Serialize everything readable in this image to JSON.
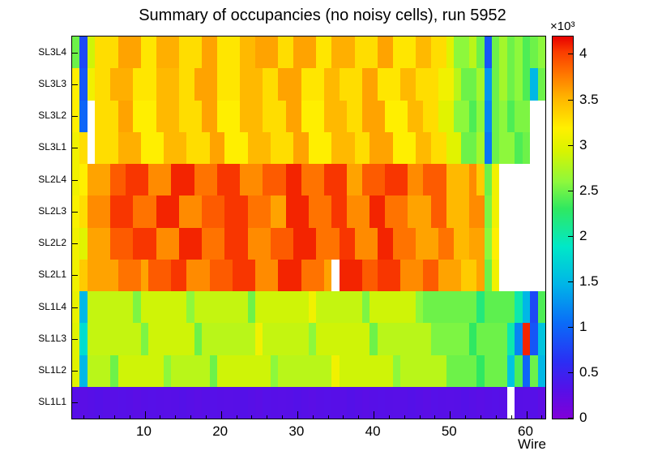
{
  "title": "Summary of occupancies (no noisy cells), run 5952",
  "chart_data": {
    "type": "heatmap",
    "title": "Summary of occupancies (no noisy cells), run 5952",
    "xlabel": "Wire",
    "n_wires": 62,
    "x_ticks": [
      10,
      20,
      30,
      40,
      50,
      60
    ],
    "x_minor_tick_step": 2,
    "z_max": 4200,
    "z_ticks": [
      0,
      0.5,
      1,
      1.5,
      2,
      2.5,
      3,
      3.5,
      4
    ],
    "z_scale_label": "×10³",
    "legend_position": "right",
    "grid": false,
    "palette": [
      {
        "f": 0.0,
        "color": "#8000d8"
      },
      {
        "f": 0.075,
        "color": "#5510e8"
      },
      {
        "f": 0.15,
        "color": "#2a2ff4"
      },
      {
        "f": 0.25,
        "color": "#0a6cf8"
      },
      {
        "f": 0.35,
        "color": "#00b4e8"
      },
      {
        "f": 0.45,
        "color": "#00e8c8"
      },
      {
        "f": 0.55,
        "color": "#30e860"
      },
      {
        "f": 0.62,
        "color": "#8ef83c"
      },
      {
        "f": 0.7,
        "color": "#d8f400"
      },
      {
        "f": 0.76,
        "color": "#fff000"
      },
      {
        "f": 0.84,
        "color": "#ffb400"
      },
      {
        "f": 0.9,
        "color": "#ff7800"
      },
      {
        "f": 0.96,
        "color": "#fa3c00"
      },
      {
        "f": 1.0,
        "color": "#e80000"
      }
    ],
    "rows": [
      {
        "label": "SL1L1",
        "values": [
          300,
          280,
          300,
          320,
          300,
          290,
          310,
          300,
          280,
          300,
          310,
          300,
          290,
          300,
          320,
          300,
          280,
          300,
          310,
          300,
          290,
          300,
          320,
          300,
          280,
          310,
          300,
          290,
          300,
          320,
          300,
          280,
          300,
          310,
          300,
          290,
          320,
          300,
          280,
          300,
          310,
          300,
          290,
          300,
          320,
          300,
          280,
          310,
          300,
          290,
          300,
          320,
          300,
          280,
          300,
          310,
          300,
          null,
          300,
          290,
          310,
          260
        ]
      },
      {
        "label": "SL1L2",
        "values": [
          3000,
          1500,
          2800,
          2800,
          2800,
          2500,
          2900,
          2900,
          2900,
          2900,
          2900,
          2900,
          2600,
          2800,
          2800,
          2800,
          2800,
          2800,
          2500,
          2900,
          2900,
          2900,
          2900,
          2900,
          2900,
          2900,
          2600,
          2800,
          2800,
          2800,
          2800,
          2800,
          2800,
          2800,
          3100,
          2900,
          2900,
          2900,
          2900,
          2900,
          2900,
          2900,
          2600,
          2800,
          2800,
          2800,
          2800,
          2800,
          2800,
          2500,
          2500,
          2500,
          2500,
          2300,
          2500,
          2500,
          2500,
          1600,
          2400,
          1000,
          2500,
          1500
        ]
      },
      {
        "label": "SL1L3",
        "values": [
          3000,
          1800,
          2850,
          2850,
          2850,
          2850,
          2850,
          2850,
          2850,
          2550,
          2900,
          2900,
          2900,
          2900,
          2900,
          2900,
          2500,
          2800,
          2800,
          2800,
          2800,
          2800,
          2800,
          2800,
          3100,
          2850,
          2850,
          2850,
          2850,
          2850,
          2850,
          2600,
          2900,
          2900,
          2900,
          2900,
          2900,
          2900,
          2900,
          2500,
          2800,
          2800,
          2800,
          2800,
          2800,
          2800,
          2800,
          2550,
          2550,
          2550,
          2550,
          2550,
          2300,
          2500,
          2500,
          2500,
          2500,
          2000,
          1200,
          4100,
          900,
          1600
        ]
      },
      {
        "label": "SL1L4",
        "values": [
          3050,
          1500,
          2850,
          2850,
          2850,
          2850,
          2850,
          2850,
          2550,
          2900,
          2900,
          2900,
          2900,
          2900,
          2900,
          2600,
          2850,
          2850,
          2850,
          2850,
          2850,
          2850,
          2850,
          2500,
          2900,
          2900,
          2900,
          2900,
          2900,
          2900,
          2900,
          3100,
          2850,
          2850,
          2850,
          2850,
          2850,
          2850,
          2550,
          2900,
          2900,
          2900,
          2900,
          2900,
          2900,
          2600,
          2500,
          2500,
          2500,
          2500,
          2500,
          2500,
          2500,
          2200,
          2450,
          2450,
          2450,
          2450,
          2000,
          1500,
          800,
          2400
        ]
      },
      {
        "label": "SL2L1",
        "values": [
          3100,
          3400,
          3600,
          3600,
          3600,
          3600,
          3800,
          3800,
          3800,
          3600,
          3900,
          3900,
          3900,
          4050,
          4050,
          3700,
          3700,
          3700,
          3900,
          3900,
          3900,
          4050,
          4050,
          4050,
          3700,
          3700,
          3700,
          4100,
          4100,
          4100,
          3800,
          3800,
          3800,
          3600,
          null,
          4100,
          4100,
          4100,
          3900,
          3900,
          4050,
          4050,
          4050,
          3700,
          3700,
          3700,
          3900,
          3900,
          3600,
          3600,
          3600,
          3400,
          3400,
          3600,
          2500,
          3100,
          null,
          null,
          null,
          null,
          null,
          null
        ]
      },
      {
        "label": "SL2L2",
        "values": [
          3100,
          3000,
          3600,
          3600,
          3600,
          3900,
          3900,
          3900,
          4050,
          4050,
          4050,
          3700,
          3700,
          3700,
          4100,
          4100,
          4100,
          3800,
          3800,
          3800,
          4050,
          4050,
          4050,
          3700,
          3700,
          3700,
          3900,
          3900,
          3900,
          4100,
          4100,
          4100,
          3800,
          3800,
          3800,
          4050,
          4050,
          3700,
          3700,
          3700,
          4100,
          4100,
          3800,
          3800,
          3800,
          3600,
          3600,
          3600,
          3800,
          3800,
          3500,
          3500,
          3600,
          3600,
          2600,
          3200,
          null,
          null,
          null,
          null,
          null,
          null
        ]
      },
      {
        "label": "SL2L3",
        "values": [
          3150,
          3300,
          3700,
          3700,
          3700,
          4050,
          4050,
          4050,
          3800,
          3800,
          3800,
          4100,
          4100,
          4100,
          3700,
          3700,
          3700,
          3900,
          3900,
          3900,
          4050,
          4050,
          4050,
          3800,
          3800,
          3800,
          3600,
          3600,
          4100,
          4100,
          4100,
          3800,
          3800,
          3800,
          4050,
          4050,
          3700,
          3700,
          3700,
          4100,
          4100,
          3800,
          3800,
          3800,
          3600,
          3600,
          3600,
          3900,
          3900,
          3500,
          3500,
          3500,
          3700,
          3700,
          2550,
          3100,
          null,
          null,
          null,
          null,
          null,
          null
        ]
      },
      {
        "label": "SL2L4",
        "values": [
          3100,
          3200,
          3600,
          3600,
          3600,
          3900,
          3900,
          4050,
          4050,
          4050,
          3700,
          3700,
          3700,
          4100,
          4100,
          4100,
          3800,
          3800,
          3800,
          4050,
          4050,
          4050,
          3700,
          3700,
          3700,
          3900,
          3900,
          3900,
          4100,
          4100,
          3800,
          3800,
          3800,
          4050,
          4050,
          4050,
          3600,
          3600,
          3900,
          3900,
          3900,
          4050,
          4050,
          4050,
          3700,
          3700,
          3900,
          3900,
          3900,
          3500,
          3500,
          3500,
          3700,
          3400,
          2500,
          3100,
          null,
          null,
          null,
          null,
          null,
          null
        ]
      },
      {
        "label": "SL3L1",
        "values": [
          3100,
          3300,
          null,
          3300,
          3300,
          3300,
          3550,
          3550,
          3550,
          3200,
          3200,
          3200,
          3500,
          3500,
          3500,
          3300,
          3300,
          3300,
          3600,
          3600,
          3200,
          3200,
          3200,
          3500,
          3500,
          3500,
          3300,
          3300,
          3300,
          3600,
          3600,
          3200,
          3200,
          3200,
          3500,
          3500,
          3500,
          3300,
          3300,
          3600,
          3600,
          3600,
          3200,
          3200,
          3200,
          3500,
          3500,
          3300,
          3300,
          3000,
          3000,
          2500,
          2500,
          2700,
          1100,
          2500,
          2600,
          2600,
          2400,
          2500,
          null,
          null
        ]
      },
      {
        "label": "SL3L2",
        "values": [
          3200,
          1000,
          null,
          3300,
          3300,
          3300,
          3600,
          3600,
          3200,
          3200,
          3200,
          3500,
          3500,
          3500,
          3300,
          3300,
          3300,
          3600,
          3600,
          3200,
          3200,
          3200,
          3500,
          3500,
          3500,
          3300,
          3300,
          3300,
          3600,
          3600,
          3200,
          3200,
          3200,
          3500,
          3500,
          3500,
          3300,
          3300,
          3600,
          3600,
          3600,
          3200,
          3200,
          3200,
          3500,
          3500,
          3300,
          3300,
          3000,
          3000,
          2600,
          2600,
          2400,
          2600,
          1200,
          2500,
          2600,
          2400,
          2550,
          2550,
          null,
          null
        ]
      },
      {
        "label": "SL3L3",
        "values": [
          3200,
          900,
          3100,
          3300,
          3300,
          3550,
          3550,
          3550,
          3250,
          3250,
          3250,
          3500,
          3500,
          3500,
          3300,
          3300,
          3600,
          3600,
          3600,
          3250,
          3250,
          3250,
          3500,
          3500,
          3500,
          3300,
          3300,
          3600,
          3600,
          3600,
          3250,
          3250,
          3250,
          3500,
          3500,
          3300,
          3300,
          3300,
          3600,
          3600,
          3250,
          3250,
          3250,
          3500,
          3500,
          3300,
          3300,
          3300,
          3100,
          3100,
          2800,
          2500,
          2500,
          2700,
          1300,
          2500,
          2700,
          2500,
          2600,
          2400,
          1500,
          2500
        ]
      },
      {
        "label": "SL3L4",
        "values": [
          2500,
          800,
          2900,
          3300,
          3300,
          3300,
          3600,
          3600,
          3600,
          3250,
          3250,
          3550,
          3550,
          3550,
          3300,
          3300,
          3300,
          3600,
          3600,
          3250,
          3250,
          3250,
          3500,
          3500,
          3600,
          3600,
          3600,
          3300,
          3300,
          3600,
          3600,
          3600,
          3250,
          3250,
          3550,
          3550,
          3550,
          3300,
          3300,
          3300,
          3600,
          3600,
          3250,
          3250,
          3250,
          3500,
          3500,
          3300,
          3300,
          3000,
          2600,
          2600,
          2800,
          2500,
          900,
          2500,
          2700,
          2500,
          2600,
          2400,
          2500,
          2600
        ]
      }
    ]
  }
}
